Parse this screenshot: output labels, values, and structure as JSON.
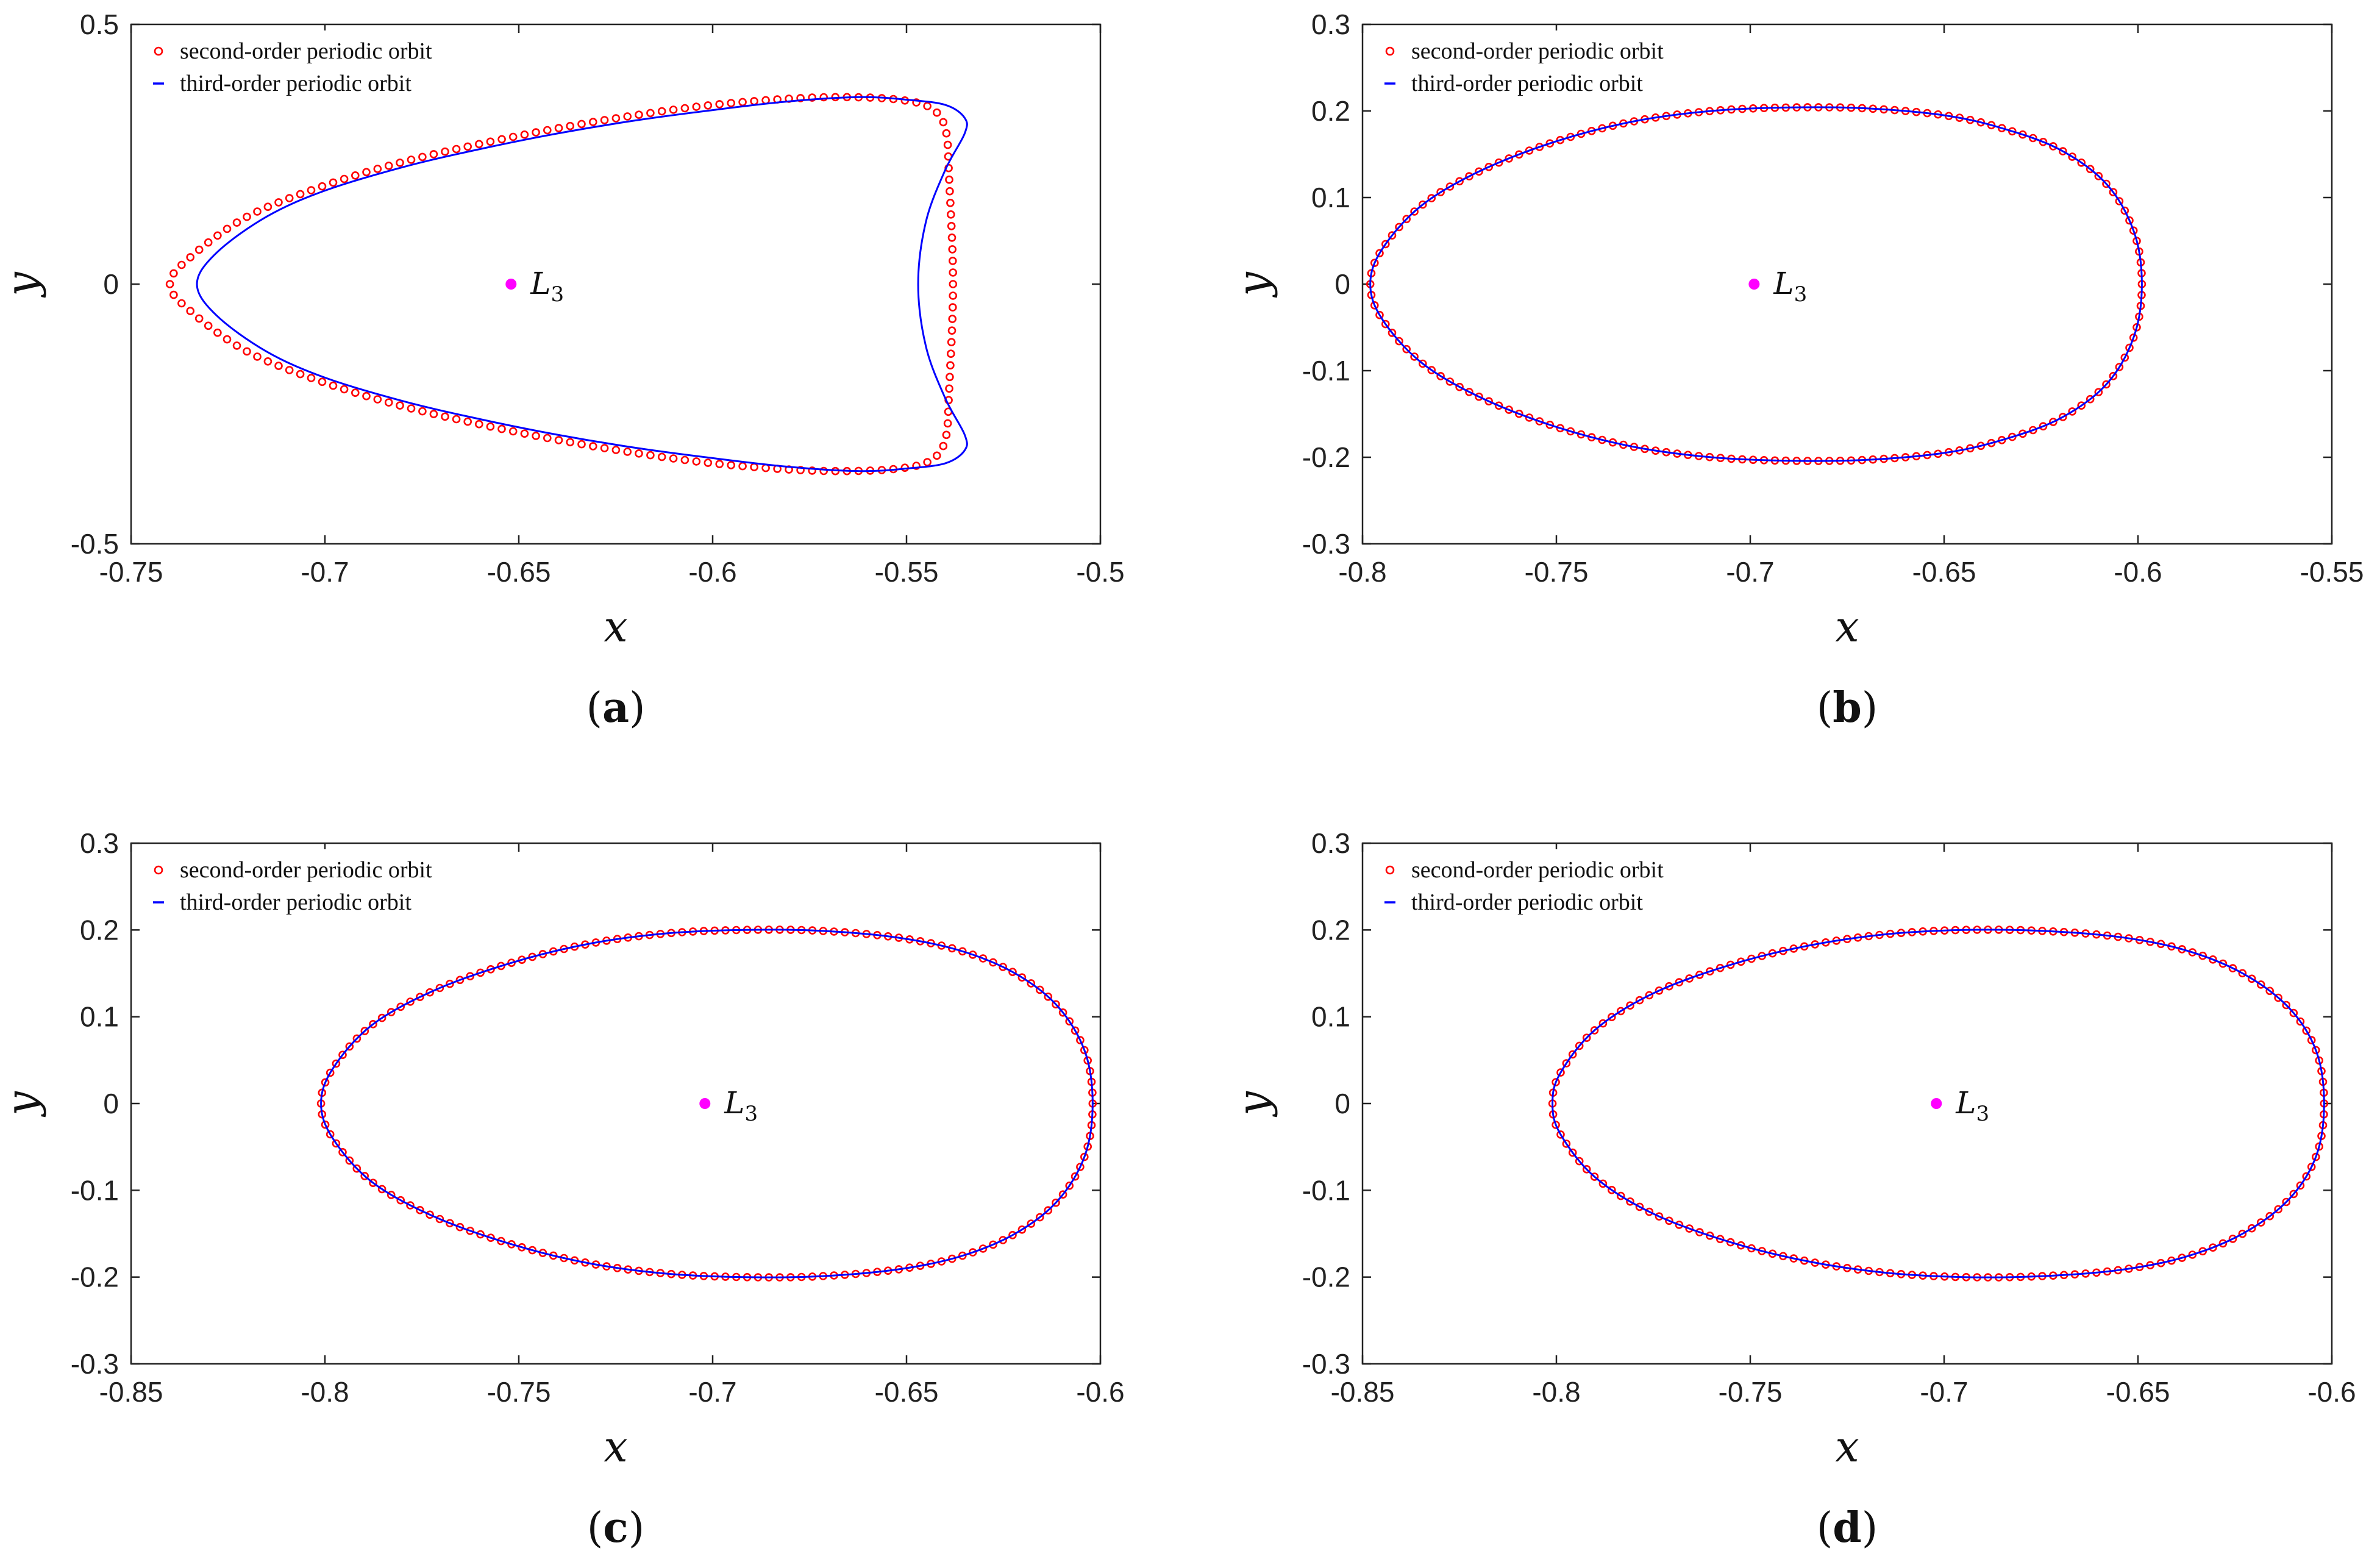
{
  "colors": {
    "second_order": "#ff0000",
    "third_order": "#0000ff",
    "equilibrium": "#ff00ff",
    "axes": "#222222"
  },
  "chart_data": [
    {
      "type": "line",
      "panel": "a",
      "caption": "(a)",
      "caption_letter": "a",
      "xlabel": "x",
      "ylabel": "y",
      "xlim": [
        -0.75,
        -0.5
      ],
      "ylim": [
        -0.5,
        0.5
      ],
      "xticks": [
        -0.75,
        -0.7,
        -0.65,
        -0.6,
        -0.55,
        -0.5
      ],
      "yticks": [
        -0.5,
        0,
        0.5
      ],
      "xtick_labels": [
        "-0.75",
        "-0.7",
        "-0.65",
        "-0.6",
        "-0.55",
        "-0.5"
      ],
      "ytick_labels": [
        "-0.5",
        "0",
        "0.5"
      ],
      "grid": false,
      "legend_position": "top-left",
      "point": {
        "label": "L",
        "subscript": "3",
        "x": -0.652,
        "y": 0
      },
      "series": [
        {
          "name": "second-order periodic orbit",
          "style": "circles",
          "x": [
            -0.74,
            -0.735,
            -0.72,
            -0.7,
            -0.68,
            -0.66,
            -0.64,
            -0.62,
            -0.6,
            -0.58,
            -0.565,
            -0.552,
            -0.544,
            -0.54,
            -0.539,
            -0.538,
            -0.539,
            -0.54,
            -0.544,
            -0.552,
            -0.565,
            -0.58,
            -0.6,
            -0.62,
            -0.64,
            -0.66,
            -0.68,
            -0.7,
            -0.72,
            -0.735,
            -0.74
          ],
          "y": [
            0,
            0.05,
            0.13,
            0.19,
            0.235,
            0.27,
            0.3,
            0.325,
            0.345,
            0.357,
            0.36,
            0.355,
            0.34,
            0.3,
            0.2,
            0,
            -0.2,
            -0.3,
            -0.34,
            -0.355,
            -0.36,
            -0.357,
            -0.345,
            -0.325,
            -0.3,
            -0.27,
            -0.235,
            -0.19,
            -0.13,
            -0.05,
            0
          ]
        },
        {
          "name": "third-order periodic orbit",
          "style": "line",
          "x": [
            -0.733,
            -0.728,
            -0.715,
            -0.7,
            -0.68,
            -0.66,
            -0.64,
            -0.62,
            -0.6,
            -0.58,
            -0.562,
            -0.55,
            -0.54,
            -0.535,
            -0.535,
            -0.54,
            -0.545,
            -0.547,
            -0.545,
            -0.54,
            -0.535,
            -0.535,
            -0.54,
            -0.55,
            -0.562,
            -0.58,
            -0.6,
            -0.62,
            -0.64,
            -0.66,
            -0.68,
            -0.7,
            -0.715,
            -0.728,
            -0.733
          ],
          "y": [
            0,
            0.06,
            0.13,
            0.18,
            0.225,
            0.26,
            0.29,
            0.315,
            0.335,
            0.352,
            0.36,
            0.355,
            0.345,
            0.32,
            0.29,
            0.22,
            0.12,
            0,
            -0.12,
            -0.22,
            -0.29,
            -0.32,
            -0.345,
            -0.355,
            -0.36,
            -0.352,
            -0.335,
            -0.315,
            -0.29,
            -0.26,
            -0.225,
            -0.18,
            -0.13,
            -0.06,
            0
          ]
        }
      ]
    },
    {
      "type": "line",
      "panel": "b",
      "caption": "(b)",
      "caption_letter": "b",
      "xlabel": "x",
      "ylabel": "y",
      "xlim": [
        -0.8,
        -0.55
      ],
      "ylim": [
        -0.3,
        0.3
      ],
      "xticks": [
        -0.8,
        -0.75,
        -0.7,
        -0.65,
        -0.6,
        -0.55
      ],
      "yticks": [
        -0.3,
        -0.2,
        -0.1,
        0,
        0.1,
        0.2,
        0.3
      ],
      "xtick_labels": [
        "-0.8",
        "-0.75",
        "-0.7",
        "-0.65",
        "-0.6",
        "-0.55"
      ],
      "ytick_labels": [
        "-0.3",
        "-0.2",
        "-0.1",
        "0",
        "0.1",
        "0.2",
        "0.3"
      ],
      "grid": false,
      "legend_position": "top-left",
      "point": {
        "label": "L",
        "subscript": "3",
        "x": -0.699,
        "y": 0
      },
      "series": [
        {
          "name": "second-order periodic orbit",
          "style": "circles",
          "x": [
            -0.798,
            -0.795,
            -0.785,
            -0.77,
            -0.75,
            -0.73,
            -0.71,
            -0.69,
            -0.67,
            -0.65,
            -0.635,
            -0.62,
            -0.608,
            -0.601,
            -0.599,
            -0.601,
            -0.608,
            -0.62,
            -0.635,
            -0.65,
            -0.67,
            -0.69,
            -0.71,
            -0.73,
            -0.75,
            -0.77,
            -0.785,
            -0.795,
            -0.798
          ],
          "y": [
            0,
            0.04,
            0.09,
            0.13,
            0.165,
            0.188,
            0.2,
            0.204,
            0.203,
            0.195,
            0.18,
            0.155,
            0.115,
            0.06,
            0,
            -0.06,
            -0.115,
            -0.155,
            -0.18,
            -0.195,
            -0.203,
            -0.204,
            -0.2,
            -0.188,
            -0.165,
            -0.13,
            -0.09,
            -0.04,
            0
          ]
        },
        {
          "name": "third-order periodic orbit",
          "style": "line",
          "x": [
            -0.798,
            -0.795,
            -0.785,
            -0.77,
            -0.75,
            -0.73,
            -0.71,
            -0.69,
            -0.67,
            -0.65,
            -0.635,
            -0.62,
            -0.608,
            -0.601,
            -0.599,
            -0.601,
            -0.608,
            -0.62,
            -0.635,
            -0.65,
            -0.67,
            -0.69,
            -0.71,
            -0.73,
            -0.75,
            -0.77,
            -0.785,
            -0.795,
            -0.798
          ],
          "y": [
            0,
            0.04,
            0.09,
            0.13,
            0.165,
            0.188,
            0.2,
            0.204,
            0.203,
            0.195,
            0.18,
            0.155,
            0.115,
            0.06,
            0,
            -0.06,
            -0.115,
            -0.155,
            -0.18,
            -0.195,
            -0.203,
            -0.204,
            -0.2,
            -0.188,
            -0.165,
            -0.13,
            -0.09,
            -0.04,
            0
          ]
        }
      ]
    },
    {
      "type": "line",
      "panel": "c",
      "caption": "(c)",
      "caption_letter": "c",
      "xlabel": "x",
      "ylabel": "y",
      "xlim": [
        -0.85,
        -0.6
      ],
      "ylim": [
        -0.3,
        0.3
      ],
      "xticks": [
        -0.85,
        -0.8,
        -0.75,
        -0.7,
        -0.65,
        -0.6
      ],
      "yticks": [
        -0.3,
        -0.2,
        -0.1,
        0,
        0.1,
        0.2,
        0.3
      ],
      "xtick_labels": [
        "-0.85",
        "-0.8",
        "-0.75",
        "-0.7",
        "-0.65",
        "-0.6"
      ],
      "ytick_labels": [
        "-0.3",
        "-0.2",
        "-0.1",
        "0",
        "0.1",
        "0.2",
        "0.3"
      ],
      "grid": false,
      "legend_position": "top-left",
      "point": {
        "label": "L",
        "subscript": "3",
        "x": -0.702,
        "y": 0
      },
      "series": [
        {
          "name": "second-order periodic orbit",
          "style": "circles",
          "x": [
            -0.801,
            -0.798,
            -0.788,
            -0.772,
            -0.752,
            -0.732,
            -0.712,
            -0.692,
            -0.672,
            -0.652,
            -0.636,
            -0.622,
            -0.611,
            -0.604,
            -0.602,
            -0.604,
            -0.611,
            -0.622,
            -0.636,
            -0.652,
            -0.672,
            -0.692,
            -0.712,
            -0.732,
            -0.752,
            -0.772,
            -0.788,
            -0.798,
            -0.801
          ],
          "y": [
            0,
            0.04,
            0.09,
            0.13,
            0.162,
            0.184,
            0.196,
            0.2,
            0.199,
            0.191,
            0.176,
            0.15,
            0.112,
            0.06,
            0,
            -0.06,
            -0.112,
            -0.15,
            -0.176,
            -0.191,
            -0.199,
            -0.2,
            -0.196,
            -0.184,
            -0.162,
            -0.13,
            -0.09,
            -0.04,
            0
          ]
        },
        {
          "name": "third-order periodic orbit",
          "style": "line",
          "x": [
            -0.801,
            -0.798,
            -0.788,
            -0.772,
            -0.752,
            -0.732,
            -0.712,
            -0.692,
            -0.672,
            -0.652,
            -0.636,
            -0.622,
            -0.611,
            -0.604,
            -0.602,
            -0.604,
            -0.611,
            -0.622,
            -0.636,
            -0.652,
            -0.672,
            -0.692,
            -0.712,
            -0.732,
            -0.752,
            -0.772,
            -0.788,
            -0.798,
            -0.801
          ],
          "y": [
            0,
            0.04,
            0.09,
            0.13,
            0.162,
            0.184,
            0.196,
            0.2,
            0.199,
            0.191,
            0.176,
            0.15,
            0.112,
            0.06,
            0,
            -0.06,
            -0.112,
            -0.15,
            -0.176,
            -0.191,
            -0.199,
            -0.2,
            -0.196,
            -0.184,
            -0.162,
            -0.13,
            -0.09,
            -0.04,
            0
          ]
        }
      ]
    },
    {
      "type": "line",
      "panel": "d",
      "caption": "(d)",
      "caption_letter": "d",
      "xlabel": "x",
      "ylabel": "y",
      "xlim": [
        -0.85,
        -0.6
      ],
      "ylim": [
        -0.3,
        0.3
      ],
      "xticks": [
        -0.85,
        -0.8,
        -0.75,
        -0.7,
        -0.65,
        -0.6
      ],
      "yticks": [
        -0.3,
        -0.2,
        -0.1,
        0,
        0.1,
        0.2,
        0.3
      ],
      "xtick_labels": [
        "-0.85",
        "-0.8",
        "-0.75",
        "-0.7",
        "-0.65",
        "-0.6"
      ],
      "ytick_labels": [
        "-0.3",
        "-0.2",
        "-0.1",
        "0",
        "0.1",
        "0.2",
        "0.3"
      ],
      "grid": false,
      "legend_position": "top-left",
      "point": {
        "label": "L",
        "subscript": "3",
        "x": -0.702,
        "y": 0
      },
      "series": [
        {
          "name": "second-order periodic orbit",
          "style": "circles",
          "x": [
            -0.801,
            -0.799,
            -0.79,
            -0.775,
            -0.755,
            -0.735,
            -0.715,
            -0.695,
            -0.675,
            -0.655,
            -0.638,
            -0.623,
            -0.611,
            -0.604,
            -0.602,
            -0.604,
            -0.611,
            -0.623,
            -0.638,
            -0.655,
            -0.675,
            -0.695,
            -0.715,
            -0.735,
            -0.755,
            -0.775,
            -0.79,
            -0.799,
            -0.801
          ],
          "y": [
            0,
            0.035,
            0.085,
            0.127,
            0.16,
            0.182,
            0.195,
            0.2,
            0.199,
            0.192,
            0.177,
            0.15,
            0.11,
            0.06,
            0,
            -0.06,
            -0.11,
            -0.15,
            -0.177,
            -0.192,
            -0.199,
            -0.2,
            -0.195,
            -0.182,
            -0.16,
            -0.127,
            -0.085,
            -0.035,
            0
          ]
        },
        {
          "name": "third-order periodic orbit",
          "style": "line",
          "x": [
            -0.801,
            -0.799,
            -0.79,
            -0.775,
            -0.755,
            -0.735,
            -0.715,
            -0.695,
            -0.675,
            -0.655,
            -0.638,
            -0.623,
            -0.611,
            -0.604,
            -0.602,
            -0.604,
            -0.611,
            -0.623,
            -0.638,
            -0.655,
            -0.675,
            -0.695,
            -0.715,
            -0.735,
            -0.755,
            -0.775,
            -0.79,
            -0.799,
            -0.801
          ],
          "y": [
            0,
            0.035,
            0.085,
            0.127,
            0.16,
            0.182,
            0.195,
            0.2,
            0.199,
            0.192,
            0.177,
            0.15,
            0.11,
            0.06,
            0,
            -0.06,
            -0.11,
            -0.15,
            -0.177,
            -0.192,
            -0.199,
            -0.2,
            -0.195,
            -0.182,
            -0.16,
            -0.127,
            -0.085,
            -0.035,
            0
          ]
        }
      ]
    }
  ]
}
